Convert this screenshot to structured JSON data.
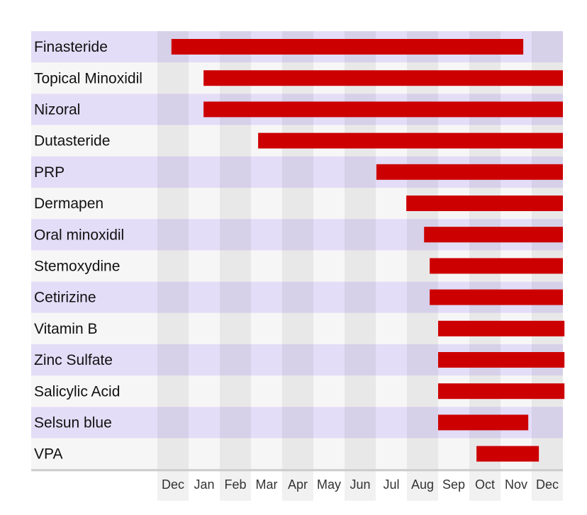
{
  "chart_data": {
    "type": "gantt",
    "title": "",
    "xlabel": "",
    "ylabel": "",
    "x_unit": "months from start of first Dec column",
    "xlim": [
      0,
      13
    ],
    "months": [
      "Dec",
      "Jan",
      "Feb",
      "Mar",
      "Apr",
      "May",
      "Jun",
      "Jul",
      "Aug",
      "Sep",
      "Oct",
      "Nov",
      "Dec"
    ],
    "tasks": [
      {
        "name": "Finasteride",
        "start": 0.45,
        "end": 11.73
      },
      {
        "name": "Topical Minoxidil",
        "start": 1.48,
        "end": 13.0
      },
      {
        "name": "Nizoral",
        "start": 1.48,
        "end": 13.0
      },
      {
        "name": "Dutasteride",
        "start": 3.23,
        "end": 13.0
      },
      {
        "name": "PRP",
        "start": 7.02,
        "end": 13.0
      },
      {
        "name": "Dermapen",
        "start": 7.98,
        "end": 13.0
      },
      {
        "name": "Oral minoxidil",
        "start": 8.55,
        "end": 13.0
      },
      {
        "name": "Stemoxydine",
        "start": 8.73,
        "end": 13.0
      },
      {
        "name": "Cetirizine",
        "start": 8.73,
        "end": 13.0
      },
      {
        "name": "Vitamin B",
        "start": 9.0,
        "end": 13.05
      },
      {
        "name": "Zinc Sulfate",
        "start": 9.0,
        "end": 13.05
      },
      {
        "name": "Salicylic Acid",
        "start": 9.0,
        "end": 13.05
      },
      {
        "name": "Selsun blue",
        "start": 9.0,
        "end": 11.89
      },
      {
        "name": "VPA",
        "start": 10.23,
        "end": 12.23
      }
    ],
    "colors": {
      "bar": "#cc0000",
      "row_odd": "#e3ddf7",
      "row_even": "#f7f6f6",
      "col_shade": "#000000",
      "axis": "#cccccc"
    }
  }
}
